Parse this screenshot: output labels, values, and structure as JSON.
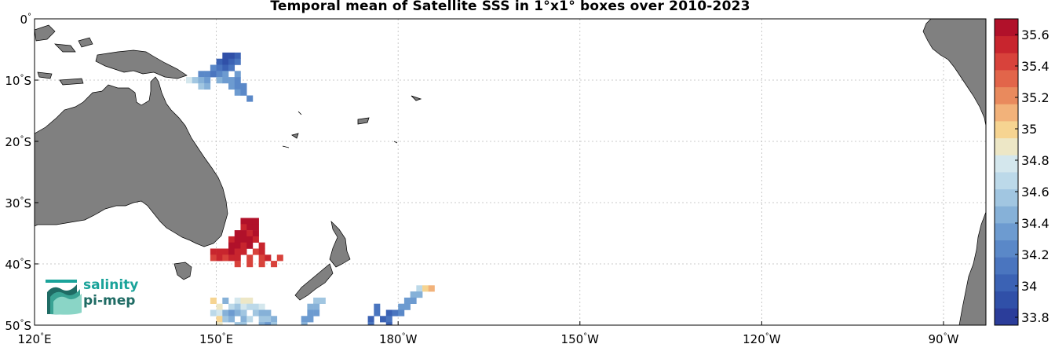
{
  "title": "Temporal mean of Satellite SSS in 1°x1° boxes over 2010-2023",
  "map": {
    "lon_range": [
      120,
      277
    ],
    "lat_range": [
      -50,
      0
    ],
    "lon_ticks": [
      {
        "lon": 120,
        "label": "120",
        "hemi": "E"
      },
      {
        "lon": 150,
        "label": "150",
        "hemi": "E"
      },
      {
        "lon": 180,
        "label": "180",
        "hemi": "W"
      },
      {
        "lon": 210,
        "label": "150",
        "hemi": "W"
      },
      {
        "lon": 240,
        "label": "120",
        "hemi": "W"
      },
      {
        "lon": 270,
        "label": "90",
        "hemi": "W"
      }
    ],
    "lat_ticks": [
      {
        "lat": 0,
        "label": "0",
        "hemi": ""
      },
      {
        "lat": -10,
        "label": "10",
        "hemi": "S"
      },
      {
        "lat": -20,
        "label": "20",
        "hemi": "S"
      },
      {
        "lat": -30,
        "label": "30",
        "hemi": "S"
      },
      {
        "lat": -40,
        "label": "40",
        "hemi": "S"
      },
      {
        "lat": -50,
        "label": "50",
        "hemi": "S"
      }
    ],
    "grid": true,
    "land_color": "#808080",
    "ocean_color": "#ffffff"
  },
  "colorbar": {
    "min": 33.75,
    "max": 35.7,
    "tick_labels": [
      "35.6",
      "35.4",
      "35.2",
      "35",
      "34.8",
      "34.6",
      "34.4",
      "34.2",
      "34",
      "33.8"
    ],
    "tick_values": [
      35.6,
      35.4,
      35.2,
      35.0,
      34.8,
      34.6,
      34.4,
      34.2,
      34.0,
      33.8
    ],
    "colors": [
      "#2b3d9a",
      "#3050a8",
      "#3b62b4",
      "#4a75bf",
      "#5a88c8",
      "#6d9bd0",
      "#86b1d8",
      "#a1c6e1",
      "#bcd9e9",
      "#d4e7ed",
      "#ede7c6",
      "#f6d491",
      "#f2b27a",
      "#e98a5d",
      "#e2654a",
      "#d8423b",
      "#c8252e",
      "#b1112a"
    ]
  },
  "logo": {
    "line1": "salinity",
    "line2": "pi-mep"
  },
  "chart_data": {
    "type": "heatmap",
    "title": "Temporal mean of Satellite SSS in 1°x1° boxes over 2010-2023",
    "xlabel": "",
    "ylabel": "",
    "xlim": [
      120,
      277
    ],
    "ylim": [
      -50,
      0
    ],
    "colorbar_range": [
      33.75,
      35.7
    ],
    "cells": [
      {
        "lon": 151,
        "lat": -6,
        "v": 33.9
      },
      {
        "lon": 152,
        "lat": -6,
        "v": 33.95
      },
      {
        "lon": 153,
        "lat": -6,
        "v": 34.0
      },
      {
        "lon": 150,
        "lat": -7,
        "v": 34.05
      },
      {
        "lon": 151,
        "lat": -7,
        "v": 33.95
      },
      {
        "lon": 152,
        "lat": -7,
        "v": 34.0
      },
      {
        "lon": 153,
        "lat": -7,
        "v": 34.1
      },
      {
        "lon": 149,
        "lat": -8,
        "v": 34.2
      },
      {
        "lon": 150,
        "lat": -8,
        "v": 34.1
      },
      {
        "lon": 151,
        "lat": -8,
        "v": 34.05
      },
      {
        "lon": 152,
        "lat": -8,
        "v": 34.15
      },
      {
        "lon": 147,
        "lat": -9,
        "v": 34.25
      },
      {
        "lon": 148,
        "lat": -9,
        "v": 34.2
      },
      {
        "lon": 149,
        "lat": -9,
        "v": 34.1
      },
      {
        "lon": 150,
        "lat": -9,
        "v": 34.2
      },
      {
        "lon": 151,
        "lat": -9,
        "v": 34.3
      },
      {
        "lon": 153,
        "lat": -9,
        "v": 34.35
      },
      {
        "lon": 145,
        "lat": -10,
        "v": 34.8
      },
      {
        "lon": 146,
        "lat": -10,
        "v": 34.6
      },
      {
        "lon": 147,
        "lat": -10,
        "v": 34.5
      },
      {
        "lon": 148,
        "lat": -10,
        "v": 34.4
      },
      {
        "lon": 150,
        "lat": -10,
        "v": 34.45
      },
      {
        "lon": 151,
        "lat": -10,
        "v": 34.3
      },
      {
        "lon": 152,
        "lat": -10,
        "v": 34.35
      },
      {
        "lon": 153,
        "lat": -10,
        "v": 34.2
      },
      {
        "lon": 147,
        "lat": -11,
        "v": 34.55
      },
      {
        "lon": 148,
        "lat": -11,
        "v": 34.5
      },
      {
        "lon": 152,
        "lat": -11,
        "v": 34.3
      },
      {
        "lon": 153,
        "lat": -11,
        "v": 34.25
      },
      {
        "lon": 154,
        "lat": -11,
        "v": 34.2
      },
      {
        "lon": 153,
        "lat": -12,
        "v": 34.3
      },
      {
        "lon": 154,
        "lat": -12,
        "v": 34.25
      },
      {
        "lon": 155,
        "lat": -13,
        "v": 34.2
      },
      {
        "lon": 154,
        "lat": -33,
        "v": 35.6
      },
      {
        "lon": 155,
        "lat": -33,
        "v": 35.65
      },
      {
        "lon": 156,
        "lat": -33,
        "v": 35.6
      },
      {
        "lon": 154,
        "lat": -34,
        "v": 35.55
      },
      {
        "lon": 155,
        "lat": -34,
        "v": 35.65
      },
      {
        "lon": 156,
        "lat": -34,
        "v": 35.6
      },
      {
        "lon": 153,
        "lat": -35,
        "v": 35.6
      },
      {
        "lon": 154,
        "lat": -35,
        "v": 35.65
      },
      {
        "lon": 155,
        "lat": -35,
        "v": 35.55
      },
      {
        "lon": 156,
        "lat": -35,
        "v": 35.6
      },
      {
        "lon": 152,
        "lat": -36,
        "v": 35.55
      },
      {
        "lon": 153,
        "lat": -36,
        "v": 35.6
      },
      {
        "lon": 154,
        "lat": -36,
        "v": 35.65
      },
      {
        "lon": 155,
        "lat": -36,
        "v": 35.6
      },
      {
        "lon": 156,
        "lat": -36,
        "v": 35.55
      },
      {
        "lon": 152,
        "lat": -37,
        "v": 35.6
      },
      {
        "lon": 153,
        "lat": -37,
        "v": 35.65
      },
      {
        "lon": 154,
        "lat": -37,
        "v": 35.55
      },
      {
        "lon": 155,
        "lat": -37,
        "v": 35.6
      },
      {
        "lon": 157,
        "lat": -37,
        "v": 35.5
      },
      {
        "lon": 149,
        "lat": -38,
        "v": 35.5
      },
      {
        "lon": 150,
        "lat": -38,
        "v": 35.55
      },
      {
        "lon": 151,
        "lat": -38,
        "v": 35.5
      },
      {
        "lon": 152,
        "lat": -38,
        "v": 35.6
      },
      {
        "lon": 153,
        "lat": -38,
        "v": 35.55
      },
      {
        "lon": 154,
        "lat": -38,
        "v": 35.5
      },
      {
        "lon": 156,
        "lat": -38,
        "v": 35.45
      },
      {
        "lon": 157,
        "lat": -38,
        "v": 35.5
      },
      {
        "lon": 149,
        "lat": -39,
        "v": 35.45
      },
      {
        "lon": 150,
        "lat": -39,
        "v": 35.5
      },
      {
        "lon": 151,
        "lat": -39,
        "v": 35.45
      },
      {
        "lon": 152,
        "lat": -39,
        "v": 35.55
      },
      {
        "lon": 153,
        "lat": -39,
        "v": 35.5
      },
      {
        "lon": 155,
        "lat": -39,
        "v": 35.45
      },
      {
        "lon": 157,
        "lat": -39,
        "v": 35.4
      },
      {
        "lon": 158,
        "lat": -39,
        "v": 35.5
      },
      {
        "lon": 160,
        "lat": -39,
        "v": 35.45
      },
      {
        "lon": 153,
        "lat": -40,
        "v": 35.45
      },
      {
        "lon": 155,
        "lat": -40,
        "v": 35.4
      },
      {
        "lon": 157,
        "lat": -40,
        "v": 35.45
      },
      {
        "lon": 159,
        "lat": -40,
        "v": 35.4
      },
      {
        "lon": 183,
        "lat": -44,
        "v": 34.7
      },
      {
        "lon": 184,
        "lat": -44,
        "v": 35.05
      },
      {
        "lon": 185,
        "lat": -44,
        "v": 35.1
      },
      {
        "lon": 182,
        "lat": -45,
        "v": 34.5
      },
      {
        "lon": 183,
        "lat": -45,
        "v": 34.45
      },
      {
        "lon": 181,
        "lat": -46,
        "v": 34.35
      },
      {
        "lon": 182,
        "lat": -46,
        "v": 34.4
      },
      {
        "lon": 176,
        "lat": -47,
        "v": 34.1
      },
      {
        "lon": 180,
        "lat": -47,
        "v": 34.35
      },
      {
        "lon": 181,
        "lat": -47,
        "v": 34.3
      },
      {
        "lon": 176,
        "lat": -48,
        "v": 34.15
      },
      {
        "lon": 178,
        "lat": -48,
        "v": 34.05
      },
      {
        "lon": 179,
        "lat": -48,
        "v": 34.1
      },
      {
        "lon": 180,
        "lat": -48,
        "v": 34.2
      },
      {
        "lon": 175,
        "lat": -49,
        "v": 34.05
      },
      {
        "lon": 177,
        "lat": -49,
        "v": 34.0
      },
      {
        "lon": 178,
        "lat": -49,
        "v": 34.1
      },
      {
        "lon": 175,
        "lat": -50,
        "v": 34.1
      },
      {
        "lon": 178,
        "lat": -50,
        "v": 34.0
      },
      {
        "lon": 166,
        "lat": -46,
        "v": 34.6
      },
      {
        "lon": 167,
        "lat": -46,
        "v": 34.55
      },
      {
        "lon": 165,
        "lat": -47,
        "v": 34.5
      },
      {
        "lon": 166,
        "lat": -47,
        "v": 34.45
      },
      {
        "lon": 165,
        "lat": -48,
        "v": 34.4
      },
      {
        "lon": 166,
        "lat": -48,
        "v": 34.35
      },
      {
        "lon": 164,
        "lat": -49,
        "v": 34.3
      },
      {
        "lon": 165,
        "lat": -49,
        "v": 34.35
      },
      {
        "lon": 164,
        "lat": -50,
        "v": 34.45
      },
      {
        "lon": 149,
        "lat": -46,
        "v": 35.0
      },
      {
        "lon": 151,
        "lat": -46,
        "v": 34.5
      },
      {
        "lon": 153,
        "lat": -46,
        "v": 34.75
      },
      {
        "lon": 154,
        "lat": -46,
        "v": 34.85
      },
      {
        "lon": 155,
        "lat": -46,
        "v": 34.9
      },
      {
        "lon": 150,
        "lat": -47,
        "v": 34.85
      },
      {
        "lon": 152,
        "lat": -47,
        "v": 34.7
      },
      {
        "lon": 153,
        "lat": -47,
        "v": 34.6
      },
      {
        "lon": 154,
        "lat": -47,
        "v": 34.75
      },
      {
        "lon": 155,
        "lat": -47,
        "v": 34.65
      },
      {
        "lon": 156,
        "lat": -47,
        "v": 34.7
      },
      {
        "lon": 157,
        "lat": -47,
        "v": 34.8
      },
      {
        "lon": 149,
        "lat": -48,
        "v": 34.7
      },
      {
        "lon": 150,
        "lat": -48,
        "v": 34.8
      },
      {
        "lon": 151,
        "lat": -48,
        "v": 34.5
      },
      {
        "lon": 152,
        "lat": -48,
        "v": 34.4
      },
      {
        "lon": 153,
        "lat": -48,
        "v": 34.5
      },
      {
        "lon": 154,
        "lat": -48,
        "v": 34.55
      },
      {
        "lon": 156,
        "lat": -48,
        "v": 34.6
      },
      {
        "lon": 157,
        "lat": -48,
        "v": 34.5
      },
      {
        "lon": 158,
        "lat": -48,
        "v": 34.45
      },
      {
        "lon": 150,
        "lat": -49,
        "v": 35.0
      },
      {
        "lon": 151,
        "lat": -49,
        "v": 34.6
      },
      {
        "lon": 152,
        "lat": -49,
        "v": 34.45
      },
      {
        "lon": 154,
        "lat": -49,
        "v": 34.5
      },
      {
        "lon": 155,
        "lat": -49,
        "v": 34.65
      },
      {
        "lon": 157,
        "lat": -49,
        "v": 34.55
      },
      {
        "lon": 158,
        "lat": -49,
        "v": 34.6
      },
      {
        "lon": 159,
        "lat": -49,
        "v": 34.5
      },
      {
        "lon": 150,
        "lat": -50,
        "v": 34.9
      },
      {
        "lon": 153,
        "lat": -50,
        "v": 34.55
      },
      {
        "lon": 154,
        "lat": -50,
        "v": 34.6
      },
      {
        "lon": 157,
        "lat": -50,
        "v": 34.5
      },
      {
        "lon": 158,
        "lat": -50,
        "v": 34.3
      },
      {
        "lon": 159,
        "lat": -50,
        "v": 34.6
      }
    ]
  }
}
